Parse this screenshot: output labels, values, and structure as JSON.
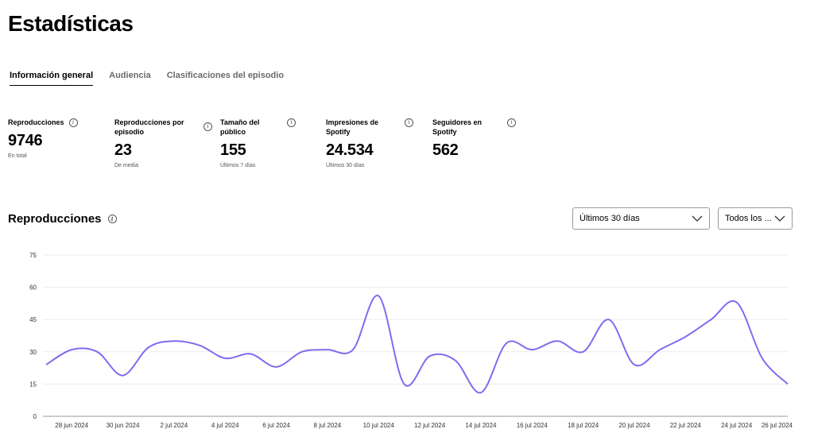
{
  "page": {
    "title": "Estadísticas"
  },
  "tabs": [
    {
      "label": "Información general",
      "active": true
    },
    {
      "label": "Audiencia",
      "active": false
    },
    {
      "label": "Clasificaciones del episodio",
      "active": false
    }
  ],
  "stats": [
    {
      "label": "Reproducciones",
      "value": "9746",
      "sub": "En total"
    },
    {
      "label": "Reproducciones por episodio",
      "value": "23",
      "sub": "De media"
    },
    {
      "label": "Tamaño del público",
      "value": "155",
      "sub": "Últimos 7 días"
    },
    {
      "label": "Impresiones de Spotify",
      "value": "24.534",
      "sub": "Últimos 30 días"
    },
    {
      "label": "Seguidores en Spotify",
      "value": "562",
      "sub": ""
    }
  ],
  "section": {
    "title": "Reproducciones"
  },
  "filters": {
    "period": "Últimos 30 días",
    "episodes": "Todos los ..."
  },
  "icons": {
    "info": "info-icon",
    "dropdown": "chevron-down-icon"
  },
  "colors": {
    "line": "#7d6df0",
    "grid": "#ebebeb"
  },
  "chart_data": {
    "type": "line",
    "title": "",
    "xlabel": "",
    "ylabel": "",
    "ylim": [
      0,
      75
    ],
    "yticks": [
      0,
      15,
      30,
      45,
      60,
      75
    ],
    "grid": true,
    "x_tick_labels": [
      "28 jun 2024",
      "30 jun 2024",
      "2 jul 2024",
      "4 jul 2024",
      "6 jul 2024",
      "8 jul 2024",
      "10 jul 2024",
      "12 jul 2024",
      "14 jul 2024",
      "16 jul 2024",
      "18 jul 2024",
      "20 jul 2024",
      "22 jul 2024",
      "24 jul 2024",
      "26 jul 2024"
    ],
    "x": [
      "27 jun 2024",
      "28 jun 2024",
      "29 jun 2024",
      "30 jun 2024",
      "1 jul 2024",
      "2 jul 2024",
      "3 jul 2024",
      "4 jul 2024",
      "5 jul 2024",
      "6 jul 2024",
      "7 jul 2024",
      "8 jul 2024",
      "9 jul 2024",
      "10 jul 2024",
      "11 jul 2024",
      "12 jul 2024",
      "13 jul 2024",
      "14 jul 2024",
      "15 jul 2024",
      "16 jul 2024",
      "17 jul 2024",
      "18 jul 2024",
      "19 jul 2024",
      "20 jul 2024",
      "21 jul 2024",
      "22 jul 2024",
      "23 jul 2024",
      "24 jul 2024",
      "25 jul 2024",
      "26 jul 2024"
    ],
    "values": [
      24,
      31,
      30,
      19,
      32,
      35,
      33,
      27,
      29,
      23,
      30,
      31,
      31,
      56,
      15,
      28,
      26,
      11,
      34,
      31,
      35,
      30,
      45,
      24,
      31,
      37,
      45,
      53,
      27,
      15
    ]
  }
}
